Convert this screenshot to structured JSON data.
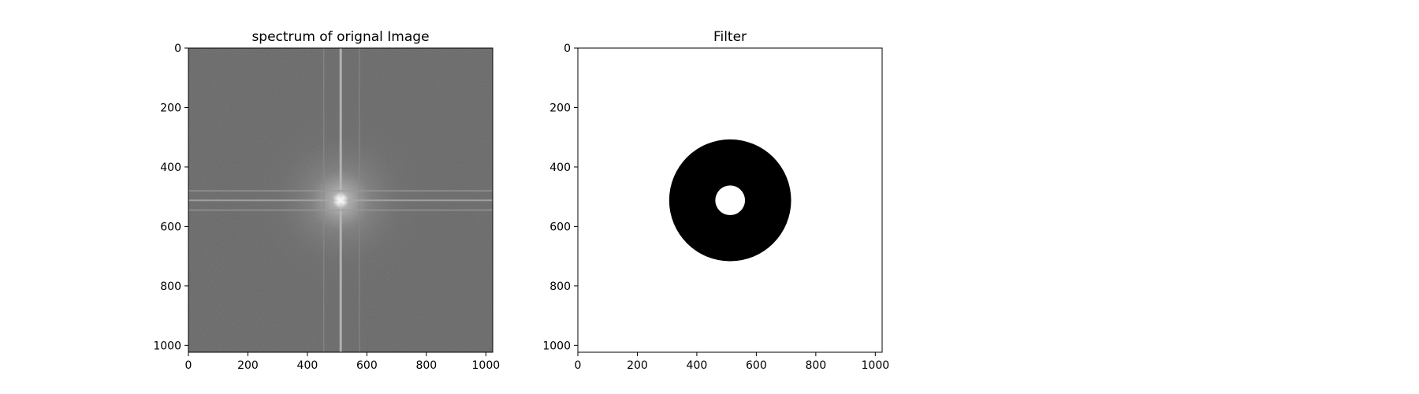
{
  "chart_data": [
    {
      "type": "heatmap",
      "title": "spectrum of orignal Image",
      "xlabel": "",
      "ylabel": "",
      "xlim": [
        0,
        1023
      ],
      "ylim": [
        1023,
        0
      ],
      "x_ticks": [
        0,
        200,
        400,
        600,
        800,
        1000
      ],
      "y_ticks": [
        0,
        200,
        400,
        600,
        800,
        1000
      ],
      "x_tick_labels": [
        "0",
        "200",
        "400",
        "600",
        "800",
        "1000"
      ],
      "y_tick_labels": [
        "0",
        "200",
        "400",
        "600",
        "800",
        "1000"
      ],
      "grid": false,
      "colormap": "gray",
      "image_description": "log-magnitude FFT spectrum, bright center at (512, 512), vertical bright line at x≈512, horizontal bright lines at y≈480, 512, 545",
      "center": [
        512,
        512
      ],
      "vertical_lines_x": [
        455,
        512,
        575
      ],
      "horizontal_lines_y": [
        480,
        512,
        545
      ],
      "colors": {
        "background": "#5a5a5a",
        "bright": "#ececec"
      }
    },
    {
      "type": "heatmap",
      "title": "Filter",
      "xlabel": "",
      "ylabel": "",
      "xlim": [
        0,
        1023
      ],
      "ylim": [
        1023,
        0
      ],
      "x_ticks": [
        0,
        200,
        400,
        600,
        800,
        1000
      ],
      "y_ticks": [
        0,
        200,
        400,
        600,
        800,
        1000
      ],
      "x_tick_labels": [
        "0",
        "200",
        "400",
        "600",
        "800",
        "1000"
      ],
      "y_tick_labels": [
        "0",
        "200",
        "400",
        "600",
        "800",
        "1000"
      ],
      "grid": false,
      "colormap": "gray",
      "image_description": "band-reject ring filter: black annulus on white background",
      "center": [
        512,
        512
      ],
      "outer_radius": 205,
      "inner_radius": 50,
      "colors": {
        "background": "#ffffff",
        "ring": "#000000"
      }
    }
  ]
}
